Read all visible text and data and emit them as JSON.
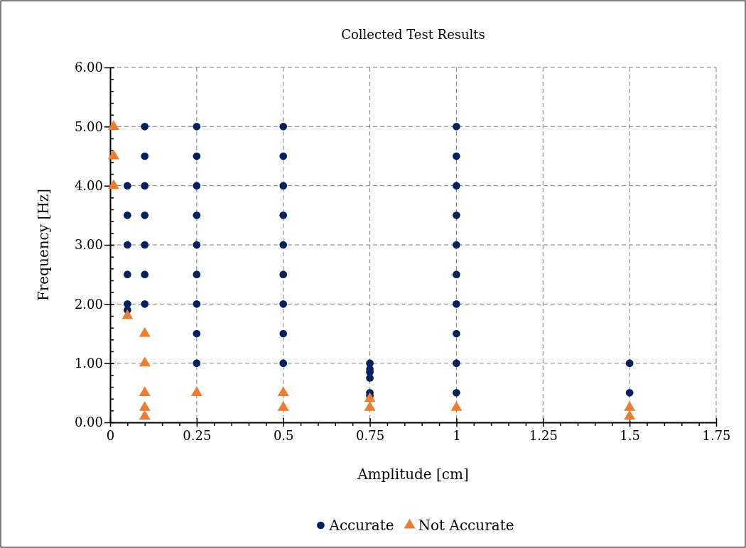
{
  "chart_data": {
    "type": "scatter",
    "title": "Collected Test Results",
    "xlabel": "Amplitude [cm]",
    "ylabel": "Frequency [Hz]",
    "xlim": [
      0,
      1.75
    ],
    "ylim": [
      0,
      6
    ],
    "xticks": [
      0,
      {
        "value": 0.05,
        "label": null
      },
      {
        "value": 0.1,
        "label": null
      },
      {
        "value": 0.15,
        "label": null
      },
      {
        "value": 0.2,
        "label": null
      },
      0.25,
      {
        "value": 0.3,
        "label": null
      },
      {
        "value": 0.35,
        "label": null
      },
      {
        "value": 0.4,
        "label": null
      },
      {
        "value": 0.45,
        "label": null
      },
      0.5,
      {
        "value": 0.55,
        "label": null
      },
      {
        "value": 0.6,
        "label": null
      },
      {
        "value": 0.65,
        "label": null
      },
      {
        "value": 0.7,
        "label": null
      },
      0.75,
      {
        "value": 0.8,
        "label": null
      },
      {
        "value": 0.85,
        "label": null
      },
      {
        "value": 0.9,
        "label": null
      },
      {
        "value": 0.95,
        "label": null
      },
      1,
      {
        "value": 1.05,
        "label": null
      },
      {
        "value": 1.1,
        "label": null
      },
      {
        "value": 1.15,
        "label": null
      },
      {
        "value": 1.2,
        "label": null
      },
      1.25,
      {
        "value": 1.3,
        "label": null
      },
      {
        "value": 1.35,
        "label": null
      },
      {
        "value": 1.4,
        "label": null
      },
      {
        "value": 1.45,
        "label": null
      },
      1.5,
      {
        "value": 1.55,
        "label": null
      },
      {
        "value": 1.6,
        "label": null
      },
      {
        "value": 1.65,
        "label": null
      },
      {
        "value": 1.7,
        "label": null
      },
      1.75
    ],
    "yticks": [
      {
        "value": 0,
        "label": "0.00"
      },
      {
        "value": 0.2,
        "label": null
      },
      {
        "value": 0.4,
        "label": null
      },
      {
        "value": 0.6,
        "label": null
      },
      {
        "value": 0.8,
        "label": null
      },
      {
        "value": 1,
        "label": "1.00"
      },
      {
        "value": 1.2,
        "label": null
      },
      {
        "value": 1.4,
        "label": null
      },
      {
        "value": 1.6,
        "label": null
      },
      {
        "value": 1.8,
        "label": null
      },
      {
        "value": 2,
        "label": "2.00"
      },
      {
        "value": 2.2,
        "label": null
      },
      {
        "value": 2.4,
        "label": null
      },
      {
        "value": 2.6,
        "label": null
      },
      {
        "value": 2.8,
        "label": null
      },
      {
        "value": 3,
        "label": "3.00"
      },
      {
        "value": 3.2,
        "label": null
      },
      {
        "value": 3.4,
        "label": null
      },
      {
        "value": 3.6,
        "label": null
      },
      {
        "value": 3.8,
        "label": null
      },
      {
        "value": 4,
        "label": "4.00"
      },
      {
        "value": 4.2,
        "label": null
      },
      {
        "value": 4.4,
        "label": null
      },
      {
        "value": 4.6,
        "label": null
      },
      {
        "value": 4.8,
        "label": null
      },
      {
        "value": 5,
        "label": "5.00"
      },
      {
        "value": 5.2,
        "label": null
      },
      {
        "value": 5.4,
        "label": null
      },
      {
        "value": 5.6,
        "label": null
      },
      {
        "value": 5.8,
        "label": null
      },
      {
        "value": 6,
        "label": "6.00"
      }
    ],
    "grid": true,
    "line_style": "dashed",
    "legend": "bottom",
    "series": [
      {
        "name": "Accurate",
        "color": "#002060",
        "marker": "circle",
        "x": [
          0.05,
          0.05,
          0.05,
          0.05,
          0.05,
          0.05,
          0.1,
          0.1,
          0.1,
          0.1,
          0.1,
          0.1,
          0.1,
          0.25,
          0.25,
          0.25,
          0.25,
          0.25,
          0.25,
          0.25,
          0.25,
          0.25,
          0.5,
          0.5,
          0.5,
          0.5,
          0.5,
          0.5,
          0.5,
          0.5,
          0.5,
          0.75,
          0.75,
          0.75,
          0.75,
          0.75,
          0.75,
          1,
          1,
          1,
          1,
          1,
          1,
          1,
          1,
          1,
          1,
          1.5,
          1.5
        ],
        "values": [
          4,
          3.5,
          3,
          2.5,
          2,
          1.9,
          5,
          4.5,
          4,
          3.5,
          3,
          2.5,
          2,
          5,
          4.5,
          4,
          3.5,
          3,
          2.5,
          2,
          1.5,
          1,
          5,
          4.5,
          4,
          3.5,
          3,
          2.5,
          2,
          1.5,
          1,
          1,
          0.9,
          0.85,
          0.75,
          0.5,
          0.45,
          5,
          4.5,
          4,
          3.5,
          3,
          2.5,
          2,
          1.5,
          1,
          0.5,
          1,
          0.5
        ]
      },
      {
        "name": "Not Accurate",
        "color": "#ed7d31",
        "marker": "triangle",
        "x": [
          0.01,
          0.01,
          0.01,
          0.05,
          0.1,
          0.1,
          0.1,
          0.1,
          0.1,
          0.25,
          0.5,
          0.5,
          0.75,
          0.75,
          1,
          1.5,
          1.5
        ],
        "values": [
          5,
          4.5,
          4,
          1.8,
          1.5,
          1,
          0.5,
          0.25,
          0.1,
          0.5,
          0.5,
          0.25,
          0.4,
          0.25,
          0.25,
          0.25,
          0.1
        ]
      }
    ]
  }
}
